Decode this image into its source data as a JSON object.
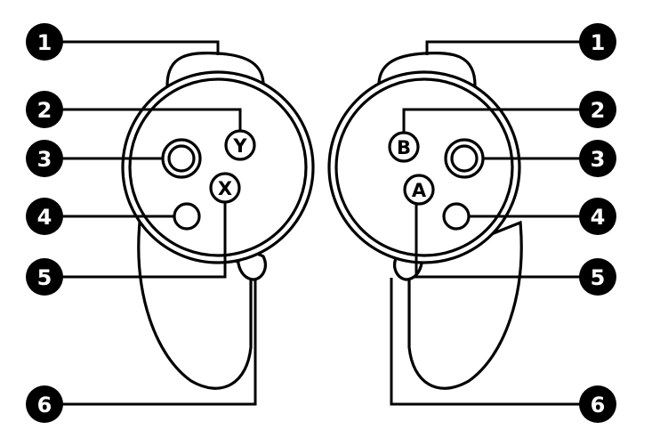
{
  "callouts": {
    "left": [
      "1",
      "2",
      "3",
      "4",
      "5",
      "6"
    ],
    "right": [
      "1",
      "2",
      "3",
      "4",
      "5",
      "6"
    ]
  },
  "buttons": {
    "left_top": "Y",
    "left_bottom": "X",
    "right_top": "B",
    "right_bottom": "A"
  }
}
